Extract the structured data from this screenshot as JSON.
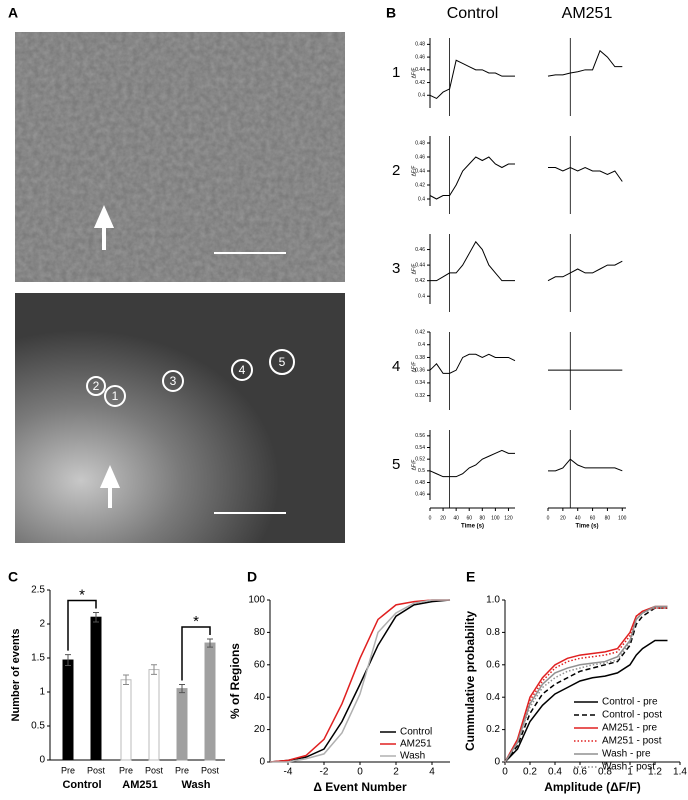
{
  "panel_labels": [
    "A",
    "B",
    "C",
    "D",
    "E"
  ],
  "panel_a": {
    "roi_labels": [
      "1",
      "2",
      "3",
      "4",
      "5"
    ]
  },
  "panel_b": {
    "columns": [
      {
        "title": "Control",
        "x": [
          0,
          10,
          20,
          30,
          40,
          50,
          60,
          70,
          80,
          90,
          100,
          110,
          120,
          130
        ],
        "xlim": [
          0,
          130
        ],
        "xticks": [
          0,
          20,
          40,
          60,
          80,
          100,
          120
        ]
      },
      {
        "title": "AM251",
        "x": [
          0,
          10,
          20,
          30,
          40,
          50,
          60,
          70,
          80,
          90,
          100
        ],
        "xlim": [
          0,
          105
        ],
        "xticks": [
          0,
          20,
          40,
          60,
          80,
          100
        ]
      }
    ],
    "stimulus_time": 30,
    "y_label": "ΔF/F",
    "x_label": "Time (s)",
    "rows": [
      {
        "label": "1",
        "ylim": [
          0.38,
          0.49
        ],
        "yticks": [
          0.4,
          0.42,
          0.44,
          0.46,
          0.48
        ],
        "values": [
          [
            0.4,
            0.395,
            0.405,
            0.41,
            0.455,
            0.45,
            0.445,
            0.44,
            0.44,
            0.435,
            0.435,
            0.43,
            0.43,
            0.43
          ],
          [
            0.43,
            0.432,
            0.432,
            0.435,
            0.437,
            0.44,
            0.44,
            0.47,
            0.46,
            0.445,
            0.445
          ]
        ]
      },
      {
        "label": "2",
        "ylim": [
          0.39,
          0.49
        ],
        "yticks": [
          0.4,
          0.42,
          0.44,
          0.46,
          0.48
        ],
        "values": [
          [
            0.405,
            0.4,
            0.405,
            0.405,
            0.42,
            0.44,
            0.45,
            0.46,
            0.455,
            0.46,
            0.45,
            0.445,
            0.45,
            0.45
          ],
          [
            0.445,
            0.445,
            0.44,
            0.445,
            0.44,
            0.445,
            0.44,
            0.44,
            0.435,
            0.44,
            0.425
          ]
        ]
      },
      {
        "label": "3",
        "ylim": [
          0.39,
          0.48
        ],
        "yticks": [
          0.4,
          0.42,
          0.44,
          0.46
        ],
        "values": [
          [
            0.42,
            0.42,
            0.425,
            0.43,
            0.43,
            0.44,
            0.455,
            0.47,
            0.46,
            0.44,
            0.43,
            0.42,
            0.42,
            0.42
          ],
          [
            0.42,
            0.425,
            0.425,
            0.43,
            0.435,
            0.43,
            0.43,
            0.435,
            0.44,
            0.44,
            0.445
          ]
        ]
      },
      {
        "label": "4",
        "ylim": [
          0.31,
          0.42
        ],
        "yticks": [
          0.32,
          0.34,
          0.36,
          0.38,
          0.4,
          0.42
        ],
        "values": [
          [
            0.36,
            0.37,
            0.355,
            0.355,
            0.36,
            0.38,
            0.385,
            0.385,
            0.38,
            0.385,
            0.38,
            0.38,
            0.38,
            0.375
          ],
          [
            0.36,
            0.36,
            0.36,
            0.36,
            0.36,
            0.36,
            0.36,
            0.36,
            0.36,
            0.36,
            0.36
          ]
        ]
      },
      {
        "label": "5",
        "ylim": [
          0.45,
          0.57
        ],
        "yticks": [
          0.46,
          0.48,
          0.5,
          0.52,
          0.54,
          0.56
        ],
        "values": [
          [
            0.5,
            0.495,
            0.49,
            0.49,
            0.49,
            0.495,
            0.505,
            0.51,
            0.52,
            0.525,
            0.53,
            0.535,
            0.53,
            0.53
          ],
          [
            0.5,
            0.5,
            0.505,
            0.52,
            0.51,
            0.505,
            0.505,
            0.505,
            0.505,
            0.505,
            0.5
          ]
        ]
      }
    ]
  },
  "panel_c": {
    "type": "bar",
    "y_label": "Number of events",
    "ylim": [
      0,
      2.5
    ],
    "yticks": [
      0,
      0.5,
      1,
      1.5,
      2,
      2.5
    ],
    "groups": [
      "Control",
      "AM251",
      "Wash"
    ],
    "bar_labels": [
      "Pre",
      "Post"
    ],
    "values": [
      [
        1.47,
        2.1
      ],
      [
        1.18,
        1.33
      ],
      [
        1.05,
        1.72
      ]
    ],
    "errors": [
      [
        0.08,
        0.07
      ],
      [
        0.07,
        0.07
      ],
      [
        0.06,
        0.06
      ]
    ],
    "colors": [
      "#000000",
      "#ffffff",
      "#a0a0a0"
    ],
    "significance": [
      "*",
      null,
      "*"
    ]
  },
  "panel_d": {
    "type": "line",
    "x_label": "Δ Event Number",
    "y_label": "% of Regions",
    "x": [
      -5,
      -4,
      -3,
      -2,
      -1,
      0,
      1,
      2,
      3,
      4,
      5
    ],
    "xlim": [
      -5,
      5
    ],
    "xticks": [
      -4,
      -2,
      0,
      2,
      4
    ],
    "ylim": [
      0,
      100
    ],
    "yticks": [
      0,
      20,
      40,
      60,
      80,
      100
    ],
    "series": [
      {
        "name": "Control",
        "color": "#000000",
        "dash": "solid",
        "values": [
          0,
          1,
          3,
          8,
          25,
          48,
          72,
          90,
          97,
          99,
          100
        ]
      },
      {
        "name": "AM251",
        "color": "#e02020",
        "dash": "solid",
        "values": [
          0,
          1,
          4,
          14,
          36,
          64,
          88,
          97,
          99,
          100,
          100
        ]
      },
      {
        "name": "Wash",
        "color": "#b0b0b0",
        "dash": "solid",
        "values": [
          0,
          0,
          2,
          5,
          18,
          42,
          80,
          92,
          98,
          100,
          100
        ]
      }
    ]
  },
  "panel_e": {
    "type": "line",
    "x_label": "Amplitude (ΔF/F)",
    "y_label": "Cummulative probability",
    "x": [
      0,
      0.1,
      0.2,
      0.3,
      0.4,
      0.5,
      0.6,
      0.7,
      0.8,
      0.9,
      1.0,
      1.05,
      1.1,
      1.2,
      1.3
    ],
    "xlim": [
      0,
      1.4
    ],
    "xticks": [
      0,
      0.2,
      0.4,
      0.6,
      0.8,
      1,
      1.2,
      1.4
    ],
    "ylim": [
      0,
      1
    ],
    "yticks": [
      0,
      0.2,
      0.4,
      0.6,
      0.8,
      {
        "value": 1,
        "label": "1.0"
      }
    ],
    "series": [
      {
        "name": "Control - pre",
        "color": "#000000",
        "dash": "solid",
        "values": [
          0,
          0.08,
          0.25,
          0.35,
          0.42,
          0.46,
          0.5,
          0.52,
          0.53,
          0.55,
          0.6,
          0.66,
          0.7,
          0.75,
          0.75
        ]
      },
      {
        "name": "Control - post",
        "color": "#000000",
        "dash": "dashed",
        "values": [
          0,
          0.1,
          0.3,
          0.42,
          0.48,
          0.52,
          0.56,
          0.58,
          0.6,
          0.62,
          0.72,
          0.85,
          0.9,
          0.95,
          0.95
        ]
      },
      {
        "name": "AM251 - pre",
        "color": "#e02020",
        "dash": "solid",
        "values": [
          0,
          0.14,
          0.4,
          0.52,
          0.6,
          0.64,
          0.66,
          0.67,
          0.68,
          0.7,
          0.8,
          0.9,
          0.93,
          0.96,
          0.96
        ]
      },
      {
        "name": "AM251 - post",
        "color": "#e02020",
        "dash": "dotted",
        "values": [
          0,
          0.13,
          0.38,
          0.5,
          0.58,
          0.62,
          0.64,
          0.65,
          0.66,
          0.68,
          0.78,
          0.9,
          0.93,
          0.95,
          0.95
        ]
      },
      {
        "name": "Wash - pre",
        "color": "#909090",
        "dash": "solid",
        "values": [
          0,
          0.12,
          0.36,
          0.48,
          0.55,
          0.58,
          0.6,
          0.61,
          0.62,
          0.65,
          0.75,
          0.88,
          0.92,
          0.96,
          0.96
        ]
      },
      {
        "name": "Wash - post",
        "color": "#909090",
        "dash": "dotted",
        "values": [
          0,
          0.12,
          0.34,
          0.46,
          0.52,
          0.56,
          0.58,
          0.6,
          0.61,
          0.63,
          0.74,
          0.88,
          0.92,
          0.95,
          0.95
        ]
      }
    ]
  }
}
